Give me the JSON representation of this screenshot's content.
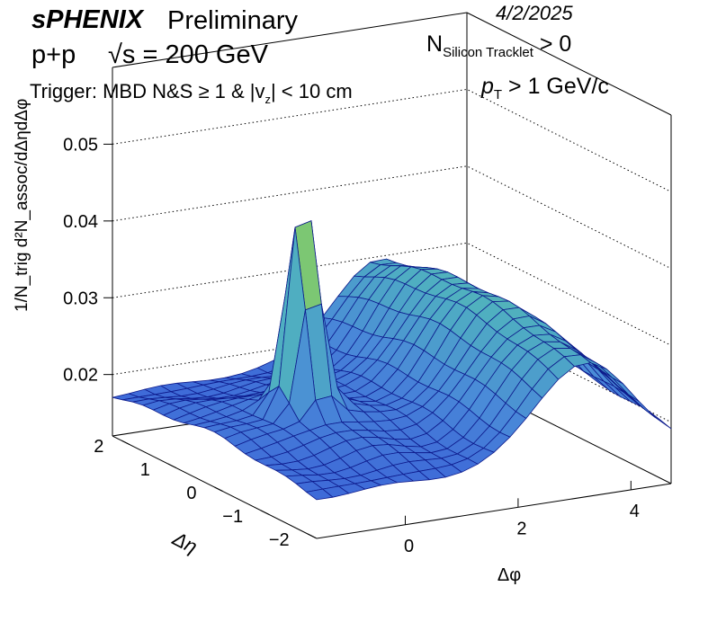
{
  "header": {
    "experiment": "sPHENIX",
    "status": "Preliminary",
    "date": "4/2/2025",
    "system": "p+p",
    "energy": "√s = 200 GeV",
    "ntrk_main": "N",
    "ntrk_sub": "Silicon Tracklet",
    "ntrk_cut": " > 0",
    "trigger_main": "Trigger: MBD N&S   ≥ 1 & |v",
    "trigger_sub": "z",
    "trigger_cut": "| < 10 cm",
    "pt_main": "p",
    "pt_sub": "T",
    "pt_cut": " >  1 GeV/c"
  },
  "chart_data": {
    "type": "surface",
    "zlabel": "1/N_trig d²N_assoc/dΔηdΔφ",
    "xlabel": "Δφ",
    "ylabel": "Δη",
    "z_ticks": [
      "0.02",
      "0.03",
      "0.04",
      "0.05"
    ],
    "x_ticks": [
      "0",
      "2",
      "4"
    ],
    "y_ticks": [
      "2",
      "1",
      "0",
      "−1",
      "−2"
    ],
    "zlim": [
      0.012,
      0.06
    ],
    "xlim": [
      -1.5708,
      4.7124
    ],
    "ylim": [
      -2.2,
      2.2
    ],
    "grid": "dotted z-gridlines on back walls",
    "near_side_peak": {
      "x": 0,
      "y": 0,
      "z": 0.047
    },
    "away_side_ridge": {
      "x": 3.14,
      "z": 0.032
    },
    "baseline": 0.0175,
    "palette": [
      "#3a5fd8",
      "#4a8ad8",
      "#4fb0c0",
      "#7ec870",
      "#e7b840"
    ],
    "mesh_color": "#0d1a8c"
  }
}
